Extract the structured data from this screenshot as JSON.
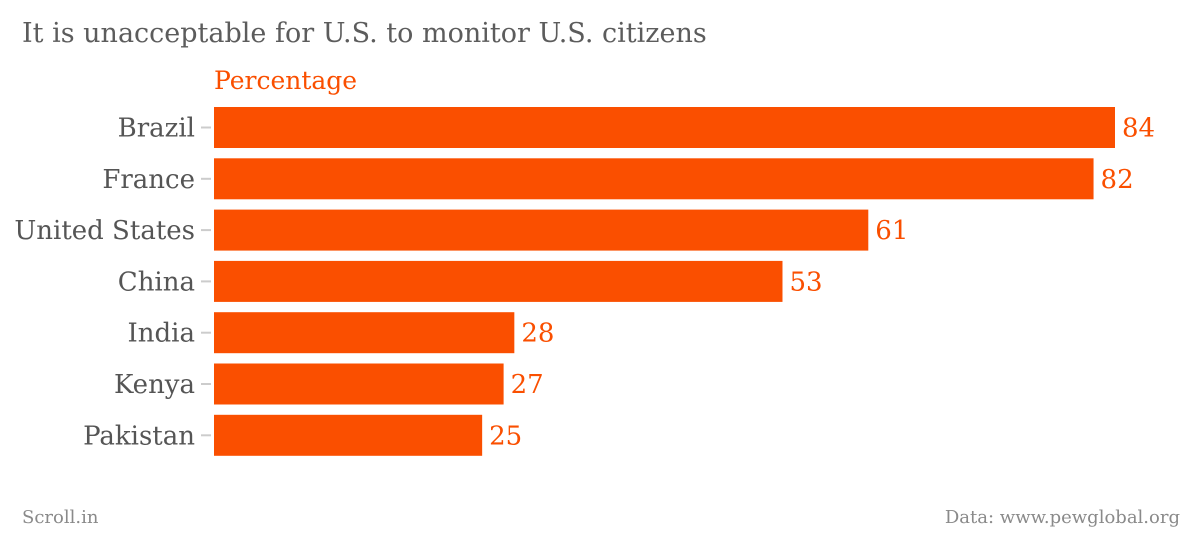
{
  "chart_data": {
    "type": "bar",
    "orientation": "horizontal",
    "title": "It is unacceptable for U.S. to monitor U.S. citizens",
    "series": [
      {
        "name": "Percentage",
        "values": [
          84,
          82,
          61,
          53,
          28,
          27,
          25
        ]
      }
    ],
    "categories": [
      "Brazil",
      "France",
      "United States",
      "China",
      "India",
      "Kenya",
      "Pakistan"
    ],
    "xlim": [
      0,
      84
    ],
    "grid": false,
    "colors": {
      "bar": "#fa4f00",
      "value_label": "#fa4f00",
      "category_label": "#555555",
      "tick": "#cccccc"
    }
  },
  "footer": {
    "source": "Scroll.in",
    "credit": "Data: www.pewglobal.org"
  }
}
